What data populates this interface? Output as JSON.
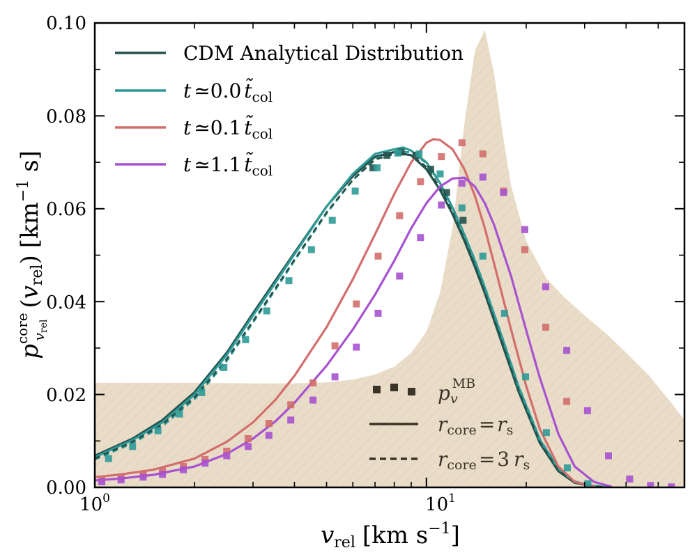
{
  "chart_data": {
    "type": "line",
    "title": "",
    "xscale": "log",
    "xlim": [
      1,
      60
    ],
    "ylim": [
      0,
      0.1
    ],
    "grid": false,
    "xlabel": "v_rel [km s^-1]",
    "ylabel": "p_v_rel^core (v_rel) [km^-1 s]",
    "xlabel_parts": {
      "var": "v",
      "sub": "rel",
      "unit": "[km s",
      "exp": "−1",
      "close": "]"
    },
    "ylabel_parts": {
      "var": "p",
      "sup": "core",
      "subvar": "v",
      "subsub": "rel",
      "arg_open": "(",
      "arg_var": "v",
      "arg_sub": "rel",
      "arg_close": ")",
      "unit": "[km",
      "exp": "−1",
      "unit2": " s]"
    },
    "x_ticks": [
      {
        "value": 1,
        "base": "10",
        "exp": "0"
      },
      {
        "value": 10,
        "base": "10",
        "exp": "1"
      }
    ],
    "y_ticks": [
      "0.00",
      "0.02",
      "0.04",
      "0.06",
      "0.08",
      "0.10"
    ],
    "y_tick_values": [
      0,
      0.02,
      0.04,
      0.06,
      0.08,
      0.1
    ],
    "legend": {
      "placement": "top-left",
      "entries": [
        {
          "label": "CDM Analytical Distribution",
          "color": "#24524c"
        },
        {
          "prefix": "t",
          "approx": "≃",
          "value": "0.0",
          "tvar": "t̃",
          "sub": "col",
          "color": "#2f9b98"
        },
        {
          "prefix": "t",
          "approx": "≃",
          "value": "0.1",
          "tvar": "t̃",
          "sub": "col",
          "color": "#d26e6c"
        },
        {
          "prefix": "t",
          "approx": "≃",
          "value": "1.1",
          "tvar": "t̃",
          "sub": "col",
          "color": "#a752d0"
        }
      ]
    },
    "style_legend": {
      "placement": "bottom-center",
      "entries": [
        {
          "style": "markers",
          "var": "p",
          "sub": "v",
          "sup": "MB"
        },
        {
          "style": "solid",
          "lhs": "r",
          "lhs_sub": "core",
          "eq": "=",
          "rhs": "r",
          "rhs_sub": "s"
        },
        {
          "style": "dashed",
          "lhs": "r",
          "lhs_sub": "core",
          "eq": "=",
          "coef": "3",
          "rhs": "r",
          "rhs_sub": "s"
        }
      ],
      "color": "#3a3326"
    },
    "shaded_region": {
      "color": "#e9dcc8",
      "hatch_color": "#d9c6a6",
      "x": [
        1,
        2,
        3,
        4,
        5,
        6,
        7,
        8,
        9,
        10,
        11,
        12,
        13,
        14,
        15,
        16,
        17,
        18,
        20,
        23,
        26,
        30,
        35,
        40,
        47,
        55,
        60
      ],
      "y": [
        0.0225,
        0.0225,
        0.0224,
        0.0224,
        0.0226,
        0.0232,
        0.0243,
        0.026,
        0.029,
        0.0335,
        0.042,
        0.056,
        0.078,
        0.094,
        0.0985,
        0.089,
        0.076,
        0.065,
        0.053,
        0.045,
        0.041,
        0.037,
        0.033,
        0.029,
        0.024,
        0.018,
        0.0145
      ]
    },
    "series": [
      {
        "name": "CDM Analytical Distribution",
        "color": "#24524c",
        "style": "solid",
        "x": [
          1,
          1.3,
          1.6,
          2,
          2.5,
          3,
          3.5,
          4,
          5,
          6,
          7,
          8,
          9,
          10,
          11,
          12,
          13,
          14,
          15,
          17,
          19,
          22,
          25,
          28,
          32,
          36
        ],
        "y": [
          0.0068,
          0.0105,
          0.0145,
          0.0205,
          0.029,
          0.0375,
          0.0445,
          0.0505,
          0.0605,
          0.067,
          0.0712,
          0.0722,
          0.0715,
          0.0685,
          0.064,
          0.0588,
          0.0532,
          0.0475,
          0.0418,
          0.0305,
          0.0205,
          0.0095,
          0.0035,
          0.001,
          0.0002,
          0
        ]
      },
      {
        "name": "t≃0.0 t̃col (solid)",
        "color": "#2f9b98",
        "style": "solid",
        "x": [
          1,
          1.3,
          1.6,
          2,
          2.5,
          3,
          3.5,
          4,
          5,
          6,
          7,
          8,
          8.5,
          9,
          10,
          11,
          12,
          13,
          14,
          15,
          17,
          19,
          22,
          25,
          28,
          32,
          36
        ],
        "y": [
          0.0065,
          0.0102,
          0.014,
          0.02,
          0.0285,
          0.037,
          0.044,
          0.0502,
          0.0605,
          0.0675,
          0.0718,
          0.0728,
          0.0732,
          0.0725,
          0.07,
          0.0655,
          0.0602,
          0.0545,
          0.0488,
          0.043,
          0.0318,
          0.0215,
          0.0102,
          0.004,
          0.0012,
          0.0003,
          0
        ]
      },
      {
        "name": "t≃0.0 t̃col (dashed)",
        "color": "#2f9b98",
        "style": "dashed",
        "x": [
          1,
          1.3,
          1.6,
          2,
          2.5,
          3,
          3.5,
          4,
          5,
          6,
          7,
          8,
          9,
          10,
          11,
          12,
          13,
          14,
          15,
          17,
          19,
          22,
          25,
          28,
          32,
          36
        ],
        "y": [
          0.006,
          0.0095,
          0.0132,
          0.019,
          0.0272,
          0.0355,
          0.0425,
          0.0488,
          0.059,
          0.0662,
          0.0708,
          0.0722,
          0.0722,
          0.0698,
          0.0655,
          0.0603,
          0.0546,
          0.049,
          0.0432,
          0.032,
          0.0217,
          0.0104,
          0.0041,
          0.0013,
          0.0003,
          0
        ]
      },
      {
        "name": "t≃0.0 t̃col (dashed dark)",
        "color": "#24524c",
        "style": "dashed",
        "x": [
          1,
          1.3,
          1.6,
          2,
          2.5,
          3,
          3.5,
          4,
          5,
          6,
          7,
          8,
          9,
          10,
          11,
          12,
          13,
          14,
          15,
          17,
          19,
          22,
          25,
          28,
          32,
          36
        ],
        "y": [
          0.0062,
          0.0098,
          0.0136,
          0.0194,
          0.0276,
          0.0358,
          0.0428,
          0.049,
          0.0592,
          0.0662,
          0.0706,
          0.0718,
          0.0716,
          0.069,
          0.0645,
          0.0592,
          0.0535,
          0.0478,
          0.042,
          0.0308,
          0.0207,
          0.0097,
          0.0036,
          0.0011,
          0.0002,
          0
        ]
      },
      {
        "name": "t≃0.1 t̃col",
        "color": "#d26e6c",
        "style": "solid",
        "x": [
          1,
          1.2,
          1.5,
          2,
          2.5,
          3,
          3.5,
          4,
          5,
          6,
          7,
          8,
          9,
          10,
          10.5,
          11,
          12,
          13,
          14,
          15,
          16,
          18,
          20,
          22,
          25,
          28,
          32
        ],
        "y": [
          0.0022,
          0.0028,
          0.0038,
          0.0062,
          0.0098,
          0.014,
          0.0188,
          0.024,
          0.0345,
          0.0448,
          0.0545,
          0.0632,
          0.07,
          0.0742,
          0.075,
          0.0748,
          0.0728,
          0.0686,
          0.0628,
          0.0558,
          0.0482,
          0.034,
          0.0218,
          0.0125,
          0.0045,
          0.0012,
          0.0002
        ]
      },
      {
        "name": "t≃1.1 t̃col",
        "color": "#a752d0",
        "style": "solid",
        "x": [
          1,
          1.2,
          1.5,
          2,
          2.5,
          3,
          3.5,
          4,
          5,
          6,
          7,
          8,
          9,
          10,
          11,
          12,
          13,
          14,
          15,
          16,
          18,
          20,
          22,
          25,
          28,
          32,
          36
        ],
        "y": [
          0.0015,
          0.0019,
          0.0027,
          0.0045,
          0.0072,
          0.0105,
          0.0142,
          0.0182,
          0.0262,
          0.034,
          0.0415,
          0.0488,
          0.0558,
          0.0612,
          0.0648,
          0.0665,
          0.0667,
          0.0648,
          0.0612,
          0.0565,
          0.0455,
          0.0338,
          0.0235,
          0.0115,
          0.0045,
          0.0012,
          0.0002
        ]
      }
    ],
    "markers": [
      {
        "name": "p_v^MB t≃0.0 (dark)",
        "color": "#24524c",
        "x": [
          6.9,
          7.6,
          8.4,
          9.3,
          10.3,
          11.5,
          12.9
        ],
        "y": [
          0.0688,
          0.0715,
          0.0722,
          0.0715,
          0.0685,
          0.0635,
          0.0575
        ]
      },
      {
        "name": "p_v^MB t≃0.0",
        "color": "#2f9b98",
        "x": [
          1.1,
          1.3,
          1.55,
          1.8,
          2.1,
          2.45,
          2.85,
          3.3,
          3.85,
          4.5,
          5.2,
          6.1,
          7.1,
          8.2,
          9.5,
          11,
          12.8,
          14.8,
          17.2,
          19.9,
          23,
          26.6,
          30.7
        ],
        "y": [
          0.0062,
          0.0088,
          0.0122,
          0.0158,
          0.0204,
          0.0258,
          0.0318,
          0.038,
          0.0445,
          0.0512,
          0.0575,
          0.0638,
          0.0688,
          0.072,
          0.0718,
          0.0675,
          0.0602,
          0.0498,
          0.0375,
          0.0238,
          0.0118,
          0.0042,
          0.0008
        ]
      },
      {
        "name": "p_v^MB t≃0.1",
        "color": "#d26e6c",
        "x": [
          1.05,
          1.2,
          1.4,
          1.6,
          1.85,
          2.15,
          2.5,
          2.9,
          3.35,
          3.9,
          4.55,
          5.3,
          6.15,
          7.15,
          8.3,
          9.6,
          11.1,
          12.8,
          14.8,
          17.1,
          19.8,
          22.9,
          26.5
        ],
        "y": [
          0.0018,
          0.0022,
          0.0028,
          0.0035,
          0.0045,
          0.006,
          0.0078,
          0.0105,
          0.0138,
          0.0178,
          0.0225,
          0.0305,
          0.0395,
          0.0498,
          0.0585,
          0.0658,
          0.0712,
          0.0742,
          0.0718,
          0.0638,
          0.0512,
          0.0345,
          0.0185
        ]
      },
      {
        "name": "p_v^MB t≃1.1",
        "color": "#a752d0",
        "x": [
          1.05,
          1.2,
          1.4,
          1.6,
          1.85,
          2.15,
          2.5,
          2.9,
          3.35,
          3.9,
          4.55,
          5.3,
          6.15,
          7.15,
          8.3,
          9.6,
          11.1,
          12.8,
          14.8,
          17.1,
          19.8,
          22.9,
          26.5,
          30.6,
          35.4,
          41,
          47.4,
          54.8
        ],
        "y": [
          0.0012,
          0.0016,
          0.0022,
          0.0028,
          0.0038,
          0.0052,
          0.0068,
          0.0088,
          0.0112,
          0.0145,
          0.0188,
          0.0238,
          0.0302,
          0.0375,
          0.0455,
          0.0538,
          0.0608,
          0.0655,
          0.0668,
          0.0635,
          0.0555,
          0.0432,
          0.0295,
          0.0165,
          0.0068,
          0.0018,
          0.0004,
          0.0001
        ]
      }
    ]
  }
}
